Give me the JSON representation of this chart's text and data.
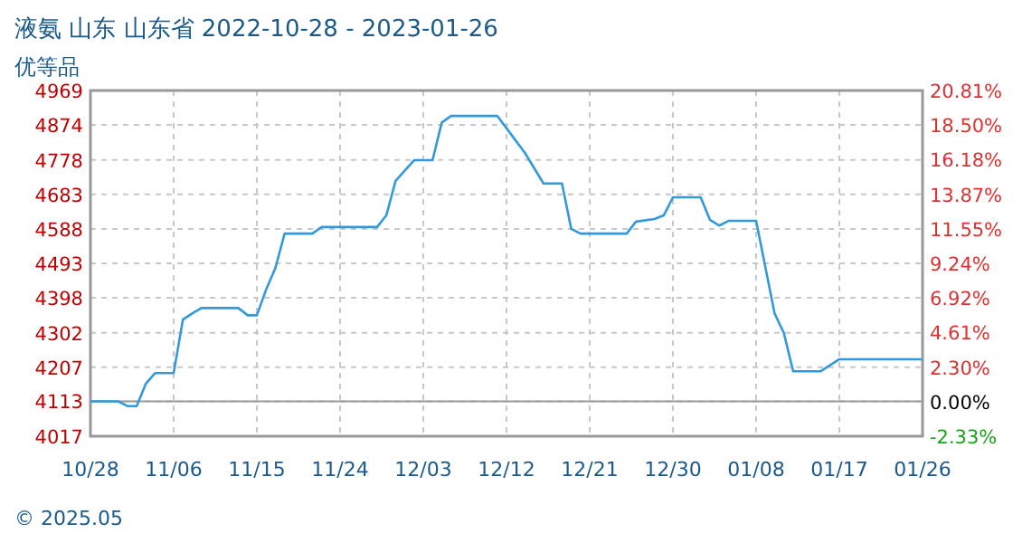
{
  "chart_data": {
    "type": "line",
    "title": "液氨 山东 山东省 2022-10-28 - 2023-01-26",
    "subtitle": "优等品",
    "annotations": [
      "© 2025.05"
    ],
    "x": [
      "2022-10-28",
      "2022-10-31",
      "2022-11-01",
      "2022-11-02",
      "2022-11-03",
      "2022-11-04",
      "2022-11-06",
      "2022-11-07",
      "2022-11-08",
      "2022-11-09",
      "2022-11-13",
      "2022-11-14",
      "2022-11-15",
      "2022-11-16",
      "2022-11-17",
      "2022-11-18",
      "2022-11-21",
      "2022-11-22",
      "2022-11-28",
      "2022-11-29",
      "2022-11-30",
      "2022-12-02",
      "2022-12-04",
      "2022-12-05",
      "2022-12-06",
      "2022-12-11",
      "2022-12-13",
      "2022-12-14",
      "2022-12-16",
      "2022-12-18",
      "2022-12-19",
      "2022-12-20",
      "2022-12-25",
      "2022-12-26",
      "2022-12-28",
      "2022-12-29",
      "2022-12-30",
      "2023-01-02",
      "2023-01-03",
      "2023-01-04",
      "2023-01-05",
      "2023-01-08",
      "2023-01-10",
      "2023-01-11",
      "2023-01-12",
      "2023-01-15",
      "2023-01-17",
      "2023-01-26"
    ],
    "series": [
      {
        "color": "#3399dd",
        "values": [
          4113,
          4113,
          4100,
          4100,
          4162,
          4191,
          4191,
          4338,
          4355,
          4370,
          4370,
          4350,
          4350,
          4421,
          4480,
          4575,
          4575,
          4593,
          4593,
          4625,
          4720,
          4777,
          4777,
          4881,
          4899,
          4899,
          4831,
          4797,
          4713,
          4713,
          4588,
          4575,
          4575,
          4608,
          4615,
          4625,
          4675,
          4675,
          4613,
          4597,
          4610,
          4610,
          4355,
          4301,
          4196,
          4196,
          4229,
          4229
        ]
      }
    ],
    "xlim": [
      "2022-10-28",
      "2023-01-26"
    ],
    "xticks": [
      {
        "value": "2022-10-28",
        "label": "10/28"
      },
      {
        "value": "2022-11-06",
        "label": "11/06"
      },
      {
        "value": "2022-11-15",
        "label": "11/15"
      },
      {
        "value": "2022-11-24",
        "label": "11/24"
      },
      {
        "value": "2022-12-03",
        "label": "12/03"
      },
      {
        "value": "2022-12-12",
        "label": "12/12"
      },
      {
        "value": "2022-12-21",
        "label": "12/21"
      },
      {
        "value": "2022-12-30",
        "label": "12/30"
      },
      {
        "value": "2023-01-08",
        "label": "01/08"
      },
      {
        "value": "2023-01-17",
        "label": "01/17"
      },
      {
        "value": "2023-01-26",
        "label": "01/26"
      }
    ],
    "ylim": [
      4017,
      4969
    ],
    "yticks": [
      4017,
      4113,
      4207,
      4302,
      4398,
      4493,
      4588,
      4683,
      4778,
      4874,
      4969
    ],
    "y2lim": [
      -2.33,
      20.81
    ],
    "y2ticks": [
      {
        "value": -2.33,
        "label": "-2.33%"
      },
      {
        "value": 0,
        "label": "0.00%"
      },
      {
        "value": 2.3,
        "label": "2.30%"
      },
      {
        "value": 4.61,
        "label": "4.61%"
      },
      {
        "value": 6.92,
        "label": "6.92%"
      },
      {
        "value": 9.24,
        "label": "9.24%"
      },
      {
        "value": 11.55,
        "label": "11.55%"
      },
      {
        "value": 13.87,
        "label": "13.87%"
      },
      {
        "value": 16.18,
        "label": "16.18%"
      },
      {
        "value": 18.5,
        "label": "18.50%"
      },
      {
        "value": 20.81,
        "label": "20.81%"
      }
    ],
    "grid": true,
    "marker": "none",
    "line_style": "solid"
  }
}
